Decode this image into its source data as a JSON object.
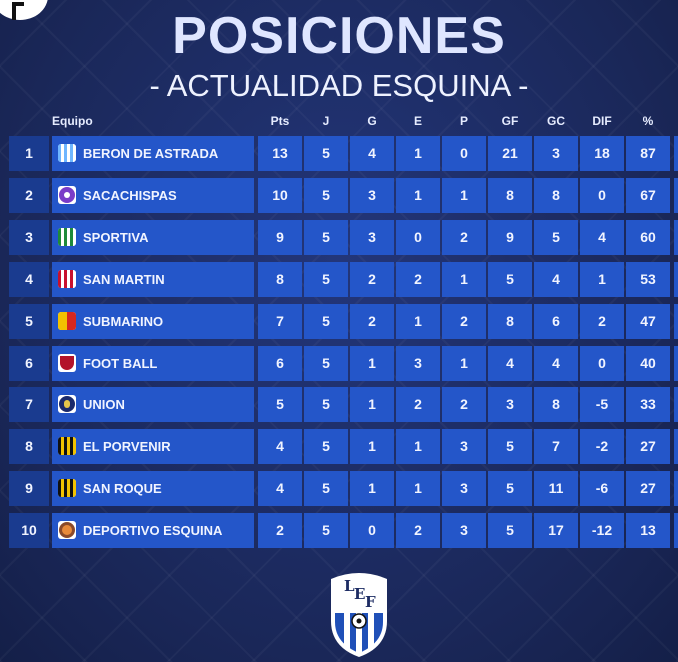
{
  "title": "POSICIONES",
  "subtitle": "- ACTUALIDAD ESQUINA -",
  "columns": [
    "Equipo",
    "Pts",
    "J",
    "G",
    "E",
    "P",
    "GF",
    "GC",
    "DIF",
    "%"
  ],
  "rows": [
    {
      "pos": "1",
      "team": "BERON DE ASTRADA",
      "crest": "beron-crest-icon",
      "pts": "13",
      "j": "5",
      "g": "4",
      "e": "1",
      "p": "0",
      "gf": "21",
      "gc": "3",
      "dif": "18",
      "pct": "87"
    },
    {
      "pos": "2",
      "team": "SACACHISPAS",
      "crest": "sacachispas-crest-icon",
      "pts": "10",
      "j": "5",
      "g": "3",
      "e": "1",
      "p": "1",
      "gf": "8",
      "gc": "8",
      "dif": "0",
      "pct": "67"
    },
    {
      "pos": "3",
      "team": "SPORTIVA",
      "crest": "sportiva-crest-icon",
      "pts": "9",
      "j": "5",
      "g": "3",
      "e": "0",
      "p": "2",
      "gf": "9",
      "gc": "5",
      "dif": "4",
      "pct": "60"
    },
    {
      "pos": "4",
      "team": "SAN MARTIN",
      "crest": "san-martin-crest-icon",
      "pts": "8",
      "j": "5",
      "g": "2",
      "e": "2",
      "p": "1",
      "gf": "5",
      "gc": "4",
      "dif": "1",
      "pct": "53"
    },
    {
      "pos": "5",
      "team": "SUBMARINO",
      "crest": "submarino-crest-icon",
      "pts": "7",
      "j": "5",
      "g": "2",
      "e": "1",
      "p": "2",
      "gf": "8",
      "gc": "6",
      "dif": "2",
      "pct": "47"
    },
    {
      "pos": "6",
      "team": "FOOT BALL",
      "crest": "foot-ball-crest-icon",
      "pts": "6",
      "j": "5",
      "g": "1",
      "e": "3",
      "p": "1",
      "gf": "4",
      "gc": "4",
      "dif": "0",
      "pct": "40"
    },
    {
      "pos": "7",
      "team": "UNION",
      "crest": "union-crest-icon",
      "pts": "5",
      "j": "5",
      "g": "1",
      "e": "2",
      "p": "2",
      "gf": "3",
      "gc": "8",
      "dif": "-5",
      "pct": "33"
    },
    {
      "pos": "8",
      "team": "EL PORVENIR",
      "crest": "el-porvenir-crest-icon",
      "pts": "4",
      "j": "5",
      "g": "1",
      "e": "1",
      "p": "3",
      "gf": "5",
      "gc": "7",
      "dif": "-2",
      "pct": "27"
    },
    {
      "pos": "9",
      "team": "SAN ROQUE",
      "crest": "san-roque-crest-icon",
      "pts": "4",
      "j": "5",
      "g": "1",
      "e": "1",
      "p": "3",
      "gf": "5",
      "gc": "11",
      "dif": "-6",
      "pct": "27"
    },
    {
      "pos": "10",
      "team": "DEPORTIVO ESQUINA",
      "crest": "deportivo-esquina-crest-icon",
      "pts": "2",
      "j": "5",
      "g": "0",
      "e": "2",
      "p": "3",
      "gf": "5",
      "gc": "17",
      "dif": "-12",
      "pct": "13"
    }
  ],
  "colors": {
    "background": "#1d2c63",
    "cell": "#2456c9",
    "pos_cell": "#1a3b8f",
    "text": "#f1f4ff"
  },
  "logo": {
    "icon": "lef-logo-icon",
    "letters": [
      "L",
      "E",
      "F"
    ]
  }
}
